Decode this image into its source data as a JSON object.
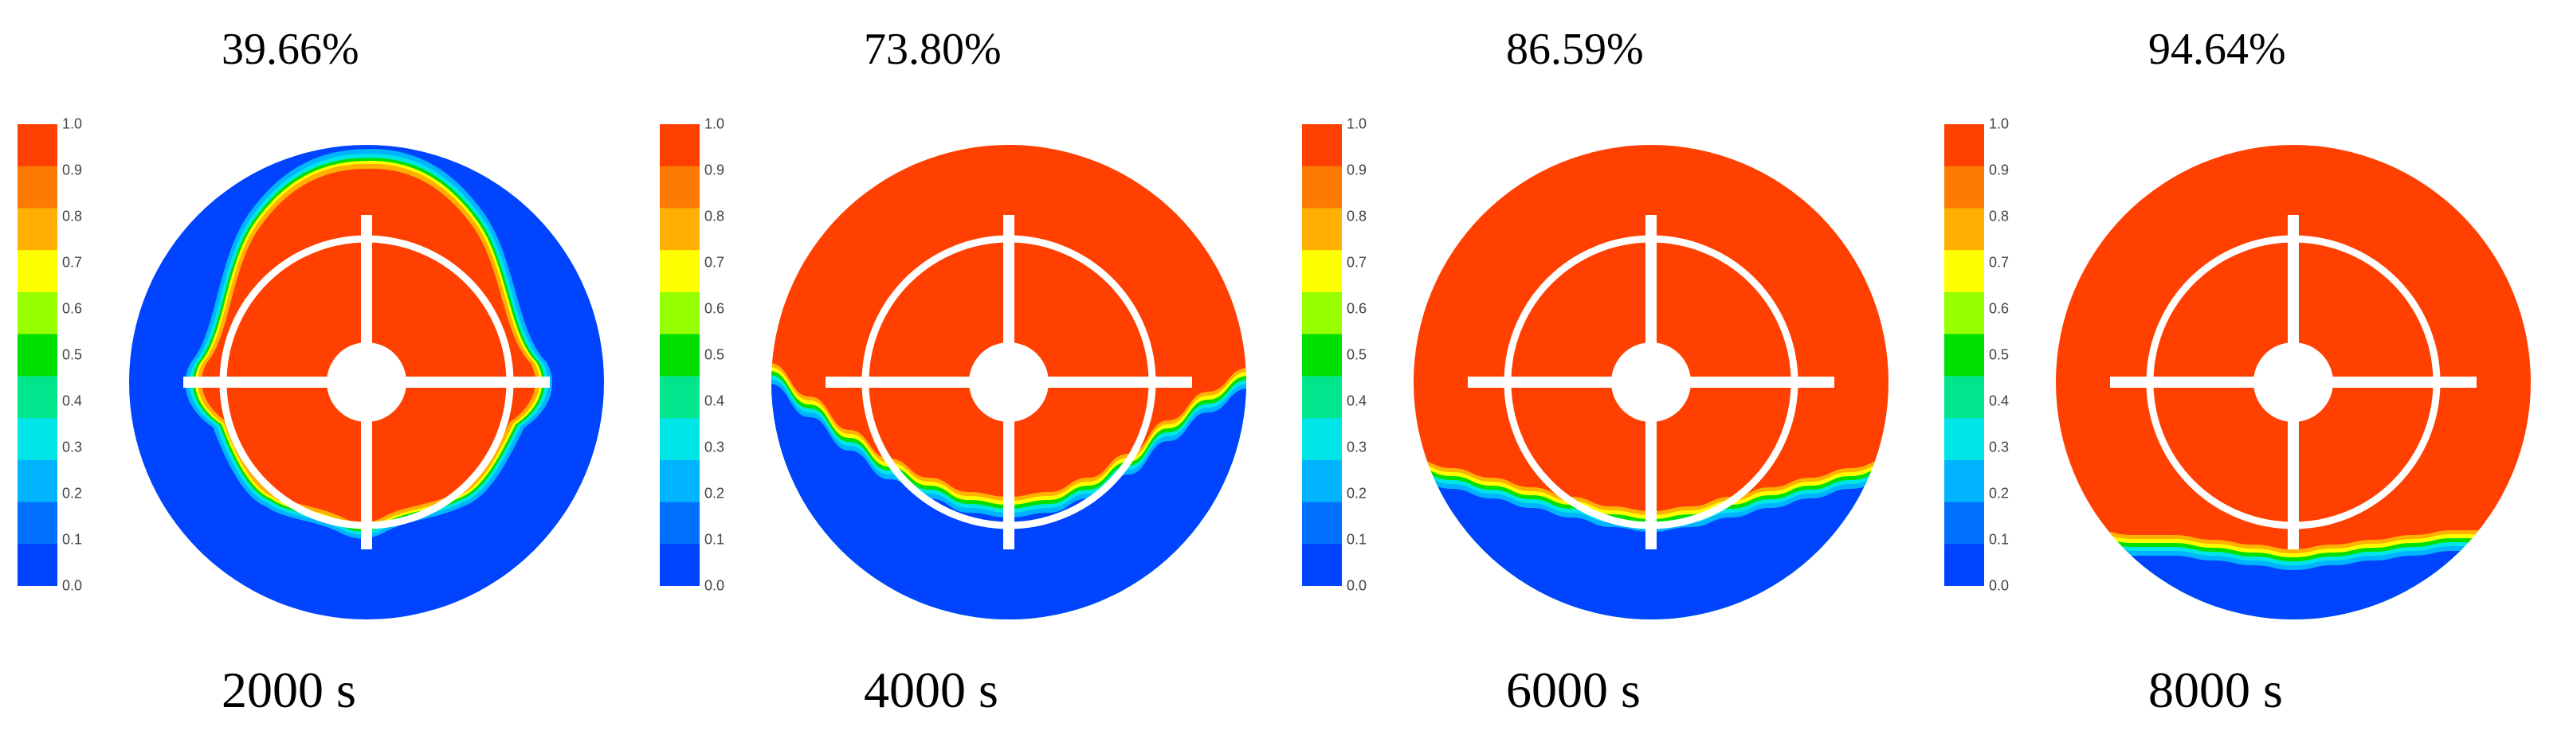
{
  "colorbar": {
    "ticks": [
      "1.0",
      "0.9",
      "0.8",
      "0.7",
      "0.6",
      "0.5",
      "0.4",
      "0.3",
      "0.2",
      "0.1",
      "0.0"
    ],
    "colors": [
      "#ff4000",
      "#ff7a00",
      "#ffb000",
      "#ffff00",
      "#96ff00",
      "#00e000",
      "#00e68c",
      "#00e6e6",
      "#00b4ff",
      "#0070ff",
      "#0044ff"
    ]
  },
  "colors": {
    "filled": "#ff4000",
    "empty": "#0044ff",
    "structure": "#ffffff"
  },
  "panels": [
    {
      "percent": "39.66%",
      "time": "2000 s",
      "mode": "blob"
    },
    {
      "percent": "73.80%",
      "time": "4000 s",
      "mode": "front",
      "front": [
        0.46,
        0.53,
        0.6,
        0.66,
        0.7,
        0.73,
        0.74,
        0.73,
        0.7,
        0.65,
        0.58,
        0.52,
        0.47
      ]
    },
    {
      "percent": "86.59%",
      "time": "6000 s",
      "mode": "front",
      "front": [
        0.66,
        0.68,
        0.7,
        0.72,
        0.74,
        0.76,
        0.77,
        0.76,
        0.74,
        0.72,
        0.7,
        0.68,
        0.66
      ]
    },
    {
      "percent": "94.64%",
      "time": "8000 s",
      "mode": "front",
      "front": [
        0.81,
        0.81,
        0.82,
        0.82,
        0.83,
        0.84,
        0.85,
        0.84,
        0.83,
        0.82,
        0.81,
        0.81,
        0.8
      ]
    }
  ]
}
